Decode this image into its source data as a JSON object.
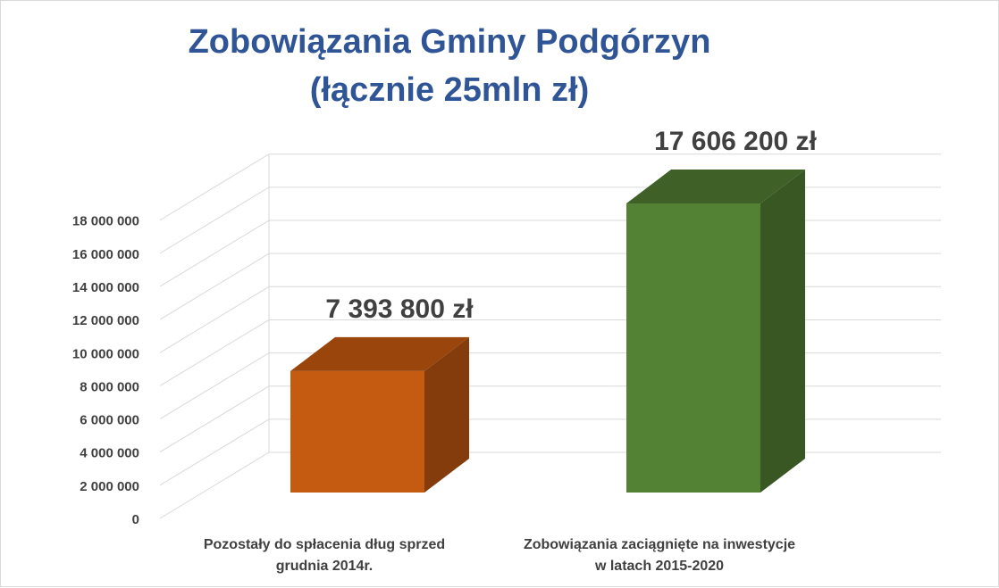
{
  "chart_data": {
    "type": "bar",
    "title_lines": [
      "Zobowiązania Gminy Podgórzyn",
      "(łącznie 25mln zł)"
    ],
    "categories": [
      [
        "Pozostały do spłacenia dług sprzed",
        "grudnia 2014r."
      ],
      [
        "Zobowiązania zaciągnięte na inwestycje",
        "w latach 2015-2020"
      ]
    ],
    "values": [
      7393800,
      17606200
    ],
    "data_labels": [
      "7 393 800 zł",
      "17 606 200 zł"
    ],
    "y_ticks": [
      0,
      2000000,
      4000000,
      6000000,
      8000000,
      10000000,
      12000000,
      14000000,
      16000000,
      18000000
    ],
    "y_tick_labels": [
      "0",
      "2 000 000",
      "4 000 000",
      "6 000 000",
      "8 000 000",
      "10 000 000",
      "12 000 000",
      "14 000 000",
      "16 000 000",
      "18 000 000"
    ],
    "ylim": [
      0,
      18000000
    ],
    "grid": true,
    "style": "3d",
    "bar_colors": {
      "front": [
        "#c55a11",
        "#548235"
      ],
      "top": [
        "#99450c",
        "#3f6128"
      ],
      "side": [
        "#843c0c",
        "#385723"
      ]
    },
    "grid_color": "#d9d9d9"
  }
}
